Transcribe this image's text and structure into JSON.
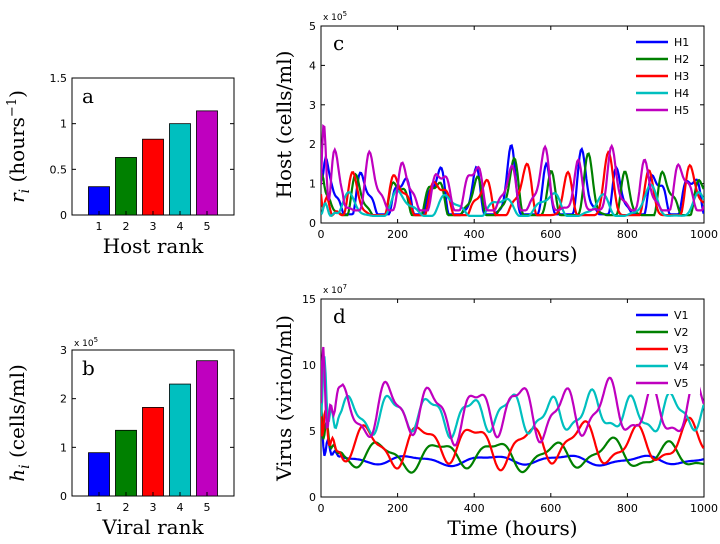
{
  "chart_data": [
    {
      "id": "a",
      "type": "bar",
      "panel_label": "a",
      "categories": [
        "1",
        "2",
        "3",
        "4",
        "5"
      ],
      "values": [
        0.31,
        0.63,
        0.83,
        1.0,
        1.14
      ],
      "colors": [
        "#0000ff",
        "#008000",
        "#ff0000",
        "#00bfbf",
        "#bf00bf"
      ],
      "xlabel": "Host rank",
      "ylabel_main": "r",
      "ylabel_sub": "i",
      "ylabel_unit": " (hours",
      "ylabel_sup": "−1",
      "ylabel_close": ")",
      "ylim": [
        0,
        1.5
      ],
      "yticks": [
        "0",
        "0.5",
        "1",
        "1.5"
      ]
    },
    {
      "id": "b",
      "type": "bar",
      "panel_label": "b",
      "categories": [
        "1",
        "2",
        "3",
        "4",
        "5"
      ],
      "values": [
        0.89,
        1.35,
        1.82,
        2.3,
        2.78
      ],
      "colors": [
        "#0000ff",
        "#008000",
        "#ff0000",
        "#00bfbf",
        "#bf00bf"
      ],
      "xlabel": "Viral rank",
      "ylabel_main": "h",
      "ylabel_sub": "i",
      "ylabel_unit": " (cells/ml)",
      "ylim": [
        0,
        3
      ],
      "yticks": [
        "0",
        "1",
        "2",
        "3"
      ],
      "multiplier": "x 10",
      "multiplier_exp": "5"
    },
    {
      "id": "c",
      "type": "line",
      "panel_label": "c",
      "xlabel": "Time (hours)",
      "ylabel": "Host (cells/ml)",
      "xlim": [
        0,
        1000
      ],
      "ylim": [
        0,
        5
      ],
      "xticks": [
        "0",
        "200",
        "400",
        "600",
        "800",
        "1000"
      ],
      "yticks": [
        "0",
        "1",
        "2",
        "3",
        "4",
        "5"
      ],
      "multiplier": "x 10",
      "multiplier_exp": "5",
      "legend_position": "top-right",
      "series": [
        {
          "name": "H1",
          "color": "#0000ff",
          "base": 0.55,
          "amp": 0.75,
          "period": 95,
          "phase": 0.3,
          "offset": 10,
          "peak": 1.1
        },
        {
          "name": "H2",
          "color": "#008000",
          "base": 0.5,
          "amp": 0.7,
          "period": 100,
          "phase": 1.6,
          "offset": 0,
          "peak": 1.0
        },
        {
          "name": "H3",
          "color": "#ff0000",
          "base": 0.5,
          "amp": 0.7,
          "period": 110,
          "phase": 2.7,
          "offset": 0,
          "peak": 1.2
        },
        {
          "name": "H4",
          "color": "#00bfbf",
          "base": 0.45,
          "amp": 0.4,
          "period": 130,
          "phase": 4.1,
          "offset": 0,
          "peak": 0.8
        },
        {
          "name": "H5",
          "color": "#bf00bf",
          "base": 0.8,
          "amp": 0.6,
          "period": 90,
          "phase": 5.0,
          "offset": 0,
          "peak": 3.8
        }
      ]
    },
    {
      "id": "d",
      "type": "line",
      "panel_label": "d",
      "xlabel": "Time (hours)",
      "ylabel": "Virus (virion/ml)",
      "xlim": [
        0,
        1000
      ],
      "ylim": [
        0,
        15
      ],
      "xticks": [
        "0",
        "200",
        "400",
        "600",
        "800",
        "1000"
      ],
      "yticks": [
        "0",
        "5",
        "10",
        "15"
      ],
      "multiplier": "x 10",
      "multiplier_exp": "7",
      "legend_position": "top-right",
      "series": [
        {
          "name": "V1",
          "color": "#0000ff",
          "base": 2.8,
          "amp": 0.3,
          "period": 200,
          "phase": 0.4
        },
        {
          "name": "V2",
          "color": "#008000",
          "base": 3.2,
          "amp": 0.9,
          "period": 150,
          "phase": 1.3
        },
        {
          "name": "V3",
          "color": "#ff0000",
          "base": 4.0,
          "amp": 1.3,
          "period": 140,
          "phase": 2.4
        },
        {
          "name": "V4",
          "color": "#00bfbf",
          "base": 6.3,
          "amp": 1.2,
          "period": 105,
          "phase": 3.3
        },
        {
          "name": "V5",
          "color": "#bf00bf",
          "base": 6.5,
          "amp": 1.7,
          "period": 115,
          "phase": 4.6
        }
      ]
    }
  ]
}
